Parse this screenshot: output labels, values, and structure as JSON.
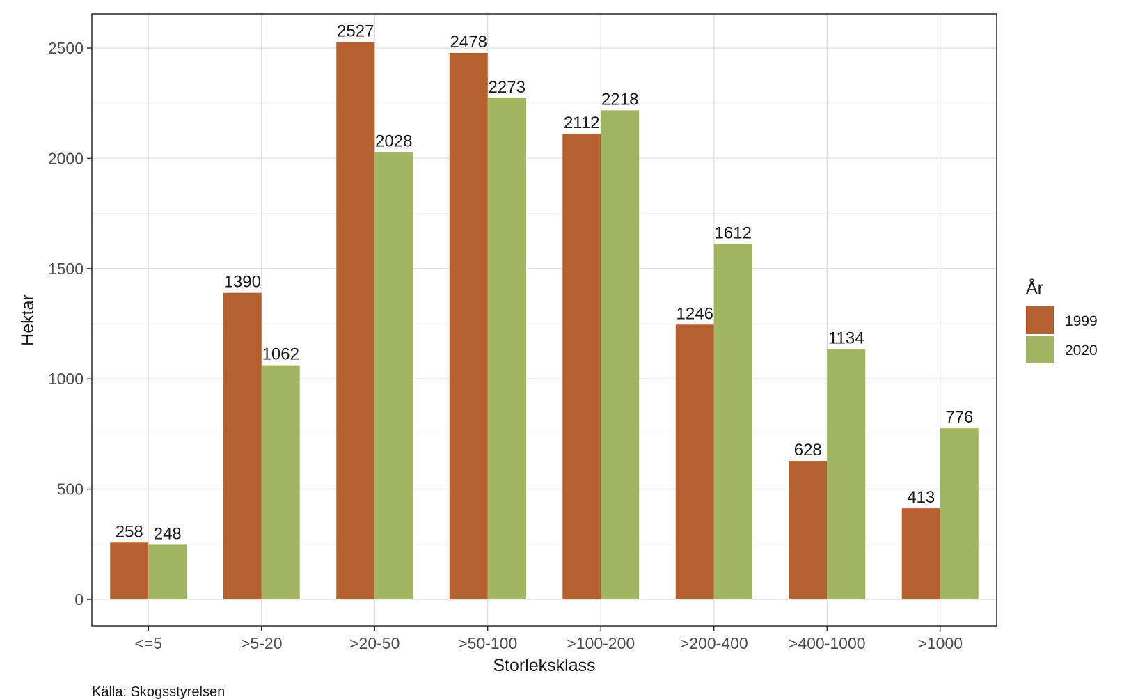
{
  "chart_data": {
    "type": "bar",
    "xlabel": "Storleksklass",
    "ylabel": "Hektar",
    "ylim": [
      0,
      2600
    ],
    "yticks": [
      0,
      500,
      1000,
      1500,
      2000,
      2500
    ],
    "grid": true,
    "categories": [
      "<=5",
      ">5-20",
      ">20-50",
      ">50-100",
      ">100-200",
      ">200-400",
      ">400-1000",
      ">1000"
    ],
    "series": [
      {
        "name": "1999",
        "color": "#b5602f",
        "values": [
          258,
          1390,
          2527,
          2478,
          2112,
          1246,
          628,
          413
        ]
      },
      {
        "name": "2020",
        "color": "#a2b562",
        "values": [
          248,
          1062,
          2028,
          2273,
          2218,
          1612,
          1134,
          776
        ]
      }
    ],
    "legend": {
      "title": "År",
      "placement": "right"
    },
    "caption": "Källa: Skogsstyrelsen"
  }
}
